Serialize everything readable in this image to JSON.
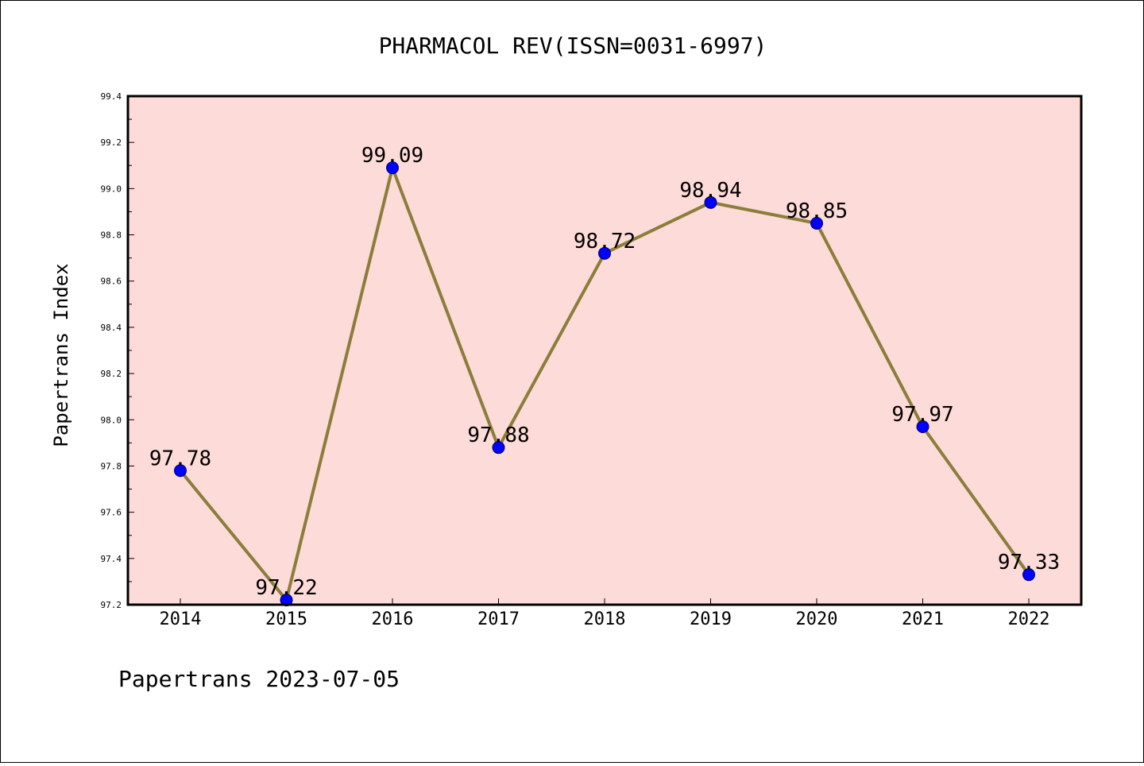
{
  "chart_data": {
    "type": "line",
    "title": "PHARMACOL REV(ISSN=0031-6997)",
    "xlabel": "",
    "ylabel": "Papertrans Index",
    "categories": [
      "2014",
      "2015",
      "2016",
      "2017",
      "2018",
      "2019",
      "2020",
      "2021",
      "2022"
    ],
    "series": [
      {
        "values": [
          97.78,
          97.22,
          99.09,
          97.88,
          98.72,
          98.94,
          98.85,
          97.97,
          97.33
        ]
      }
    ],
    "data_labels": [
      "97.78",
      "97.22",
      "99.09",
      "97.88",
      "98.72",
      "98.94",
      "98.85",
      "97.97",
      "97.33"
    ],
    "ylim": [
      97.2,
      99.4
    ],
    "yticks": [
      "97.2",
      "97.4",
      "97.6",
      "97.8",
      "98.0",
      "98.2",
      "98.4",
      "98.6",
      "98.8",
      "99.0",
      "99.2",
      "99.4"
    ],
    "grid": false,
    "colors": {
      "plot_background": "#fddbd8",
      "line": "#8b7d3a",
      "marker": "#0000ff",
      "axes": "#000000"
    }
  },
  "footer": "Papertrans 2023-07-05"
}
